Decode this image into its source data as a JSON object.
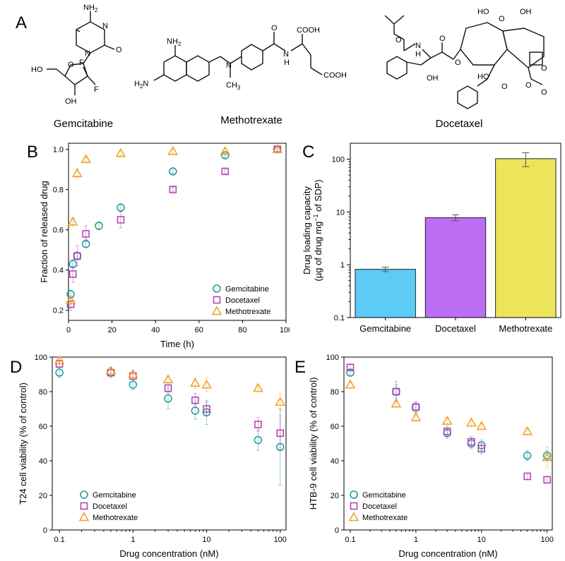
{
  "colors": {
    "gemcitabine": "#1a9a9a",
    "docetaxel": "#b03cb0",
    "methotrexate": "#f0a020",
    "bar_gemcitabine": "#5ccbf5",
    "bar_docetaxel": "#bb6ef2",
    "bar_methotrexate": "#ece55a",
    "errorbar_light": "#f0b8d8"
  },
  "panel_a": {
    "letter": "A",
    "molecules": [
      {
        "name": "Gemcitabine"
      },
      {
        "name": "Methotrexate"
      },
      {
        "name": "Docetaxel"
      }
    ],
    "atom_labels": {
      "nh2": "NH",
      "sub2": "2",
      "n": "N",
      "o": "O",
      "ho": "HO",
      "oh": "OH",
      "f": "F",
      "h": "H",
      "cooh": "COOH",
      "ch3": "CH",
      "sub3": "3"
    }
  },
  "chart_data": [
    {
      "panel": "B",
      "type": "scatter",
      "xlabel": "Time (h)",
      "ylabel": "Fraction of released drug",
      "xlim": [
        0,
        100
      ],
      "ylim": [
        0.15,
        1.03
      ],
      "xticks": [
        0,
        20,
        40,
        60,
        80,
        100
      ],
      "yticks": [
        0.2,
        0.4,
        0.6,
        0.8,
        1.0
      ],
      "xtick_labels": [
        "0",
        "20",
        "40",
        "60",
        "80",
        "100"
      ],
      "ytick_labels": [
        "0.2",
        "0.4",
        "0.6",
        "0.8",
        "1.0"
      ],
      "xscale": "linear",
      "yscale": "linear",
      "legend_position": "bottom-right",
      "series": [
        {
          "name": "Gemcitabine",
          "marker": "circle",
          "x": [
            1,
            2,
            4,
            8,
            14,
            24,
            48,
            72,
            96
          ],
          "y": [
            0.28,
            0.43,
            0.47,
            0.53,
            0.62,
            0.71,
            0.89,
            0.97,
            1.0
          ],
          "err": [
            0.02,
            0.02,
            0.02,
            0.02,
            0.02,
            0.02,
            0.01,
            0.01,
            0.01
          ]
        },
        {
          "name": "Docetaxel",
          "marker": "square",
          "x": [
            1,
            2,
            4,
            8,
            24,
            48,
            72,
            96
          ],
          "y": [
            0.23,
            0.38,
            0.47,
            0.58,
            0.65,
            0.8,
            0.89,
            1.0
          ],
          "err": [
            0.03,
            0.04,
            0.05,
            0.04,
            0.04,
            0.01,
            0.01,
            0.01
          ]
        },
        {
          "name": "Methotrexate",
          "marker": "triangle",
          "x": [
            1,
            2,
            4,
            8,
            24,
            48,
            72,
            96
          ],
          "y": [
            0.25,
            0.64,
            0.88,
            0.95,
            0.98,
            0.99,
            0.99,
            1.0
          ],
          "err": [
            0.02,
            0.02,
            0.02,
            0.01,
            0.01,
            0.01,
            0.01,
            0.01
          ]
        }
      ]
    },
    {
      "panel": "C",
      "type": "bar",
      "categories": [
        "Gemcitabine",
        "Docetaxel",
        "Methotrexate"
      ],
      "values": [
        0.82,
        7.8,
        102
      ],
      "errors": [
        0.08,
        1.0,
        30
      ],
      "yscale": "log",
      "ylim": [
        0.1,
        200
      ],
      "yticks": [
        0.1,
        1,
        10,
        100
      ],
      "ytick_labels": [
        "0.1",
        "1",
        "10",
        "100"
      ],
      "ylabel_line1": "Drug loading capacity",
      "ylabel_line2_pre": "(µg of drug mg",
      "ylabel_line2_sup": "−1",
      "ylabel_line2_post": " of SDP)"
    },
    {
      "panel": "D",
      "type": "scatter",
      "xlabel": "Drug concentration (nM)",
      "ylabel": "T24 cell viability (% of control)",
      "xscale": "log",
      "xlim": [
        0.08,
        120
      ],
      "ylim": [
        0,
        100
      ],
      "xticks": [
        0.1,
        1,
        10,
        100
      ],
      "xtick_labels": [
        "0.1",
        "1",
        "10",
        "100"
      ],
      "yticks": [
        0,
        20,
        40,
        60,
        80,
        100
      ],
      "ytick_labels": [
        "0",
        "20",
        "40",
        "60",
        "80",
        "100"
      ],
      "legend_position": "bottom-left",
      "series": [
        {
          "name": "Gemcitabine",
          "marker": "circle",
          "x": [
            0.1,
            0.5,
            1,
            3,
            7,
            10,
            50,
            100
          ],
          "y": [
            91,
            91,
            84,
            76,
            69,
            68,
            52,
            48
          ],
          "err": [
            3,
            3,
            3,
            6,
            5,
            7,
            6,
            22
          ]
        },
        {
          "name": "Docetaxel",
          "marker": "square",
          "x": [
            0.1,
            0.5,
            1,
            3,
            7,
            10,
            50,
            100
          ],
          "y": [
            96,
            91,
            89,
            82,
            75,
            70,
            61,
            56
          ],
          "err": [
            2,
            2,
            2,
            3,
            4,
            4,
            4,
            10
          ]
        },
        {
          "name": "Methotrexate",
          "marker": "triangle",
          "x": [
            0.1,
            0.5,
            1,
            3,
            7,
            10,
            50,
            100
          ],
          "y": [
            98,
            92,
            90,
            87,
            85,
            84,
            82,
            74
          ],
          "err": [
            2,
            2,
            2,
            2,
            3,
            4,
            2,
            5
          ]
        }
      ]
    },
    {
      "panel": "E",
      "type": "scatter",
      "xlabel": "Drug concentration (nM)",
      "ylabel": "HTB-9 cell viability (% of control)",
      "xscale": "log",
      "xlim": [
        0.08,
        120
      ],
      "ylim": [
        0,
        100
      ],
      "xticks": [
        0.1,
        1,
        10,
        100
      ],
      "xtick_labels": [
        "0.1",
        "1",
        "10",
        "100"
      ],
      "yticks": [
        0,
        20,
        40,
        60,
        80,
        100
      ],
      "ytick_labels": [
        "0",
        "20",
        "40",
        "60",
        "80",
        "100"
      ],
      "legend_position": "bottom-left",
      "series": [
        {
          "name": "Gemcitabine",
          "marker": "circle",
          "x": [
            0.1,
            0.5,
            1,
            3,
            7,
            10,
            50,
            100
          ],
          "y": [
            91,
            80,
            71,
            56,
            50,
            49,
            43,
            43
          ],
          "err": [
            2,
            4,
            3,
            3,
            3,
            3,
            3,
            3
          ]
        },
        {
          "name": "Docetaxel",
          "marker": "square",
          "x": [
            0.1,
            0.5,
            1,
            3,
            7,
            10,
            50,
            100
          ],
          "y": [
            94,
            80,
            71,
            57,
            51,
            47,
            31,
            29
          ],
          "err": [
            2,
            6,
            3,
            3,
            3,
            3,
            2,
            2
          ]
        },
        {
          "name": "Methotrexate",
          "marker": "triangle",
          "x": [
            0.1,
            0.5,
            1,
            3,
            7,
            10,
            50,
            100
          ],
          "y": [
            84,
            73,
            65,
            63,
            62,
            60,
            57,
            42
          ],
          "err": [
            2,
            2,
            2,
            2,
            2,
            2,
            2,
            6
          ]
        }
      ]
    }
  ]
}
